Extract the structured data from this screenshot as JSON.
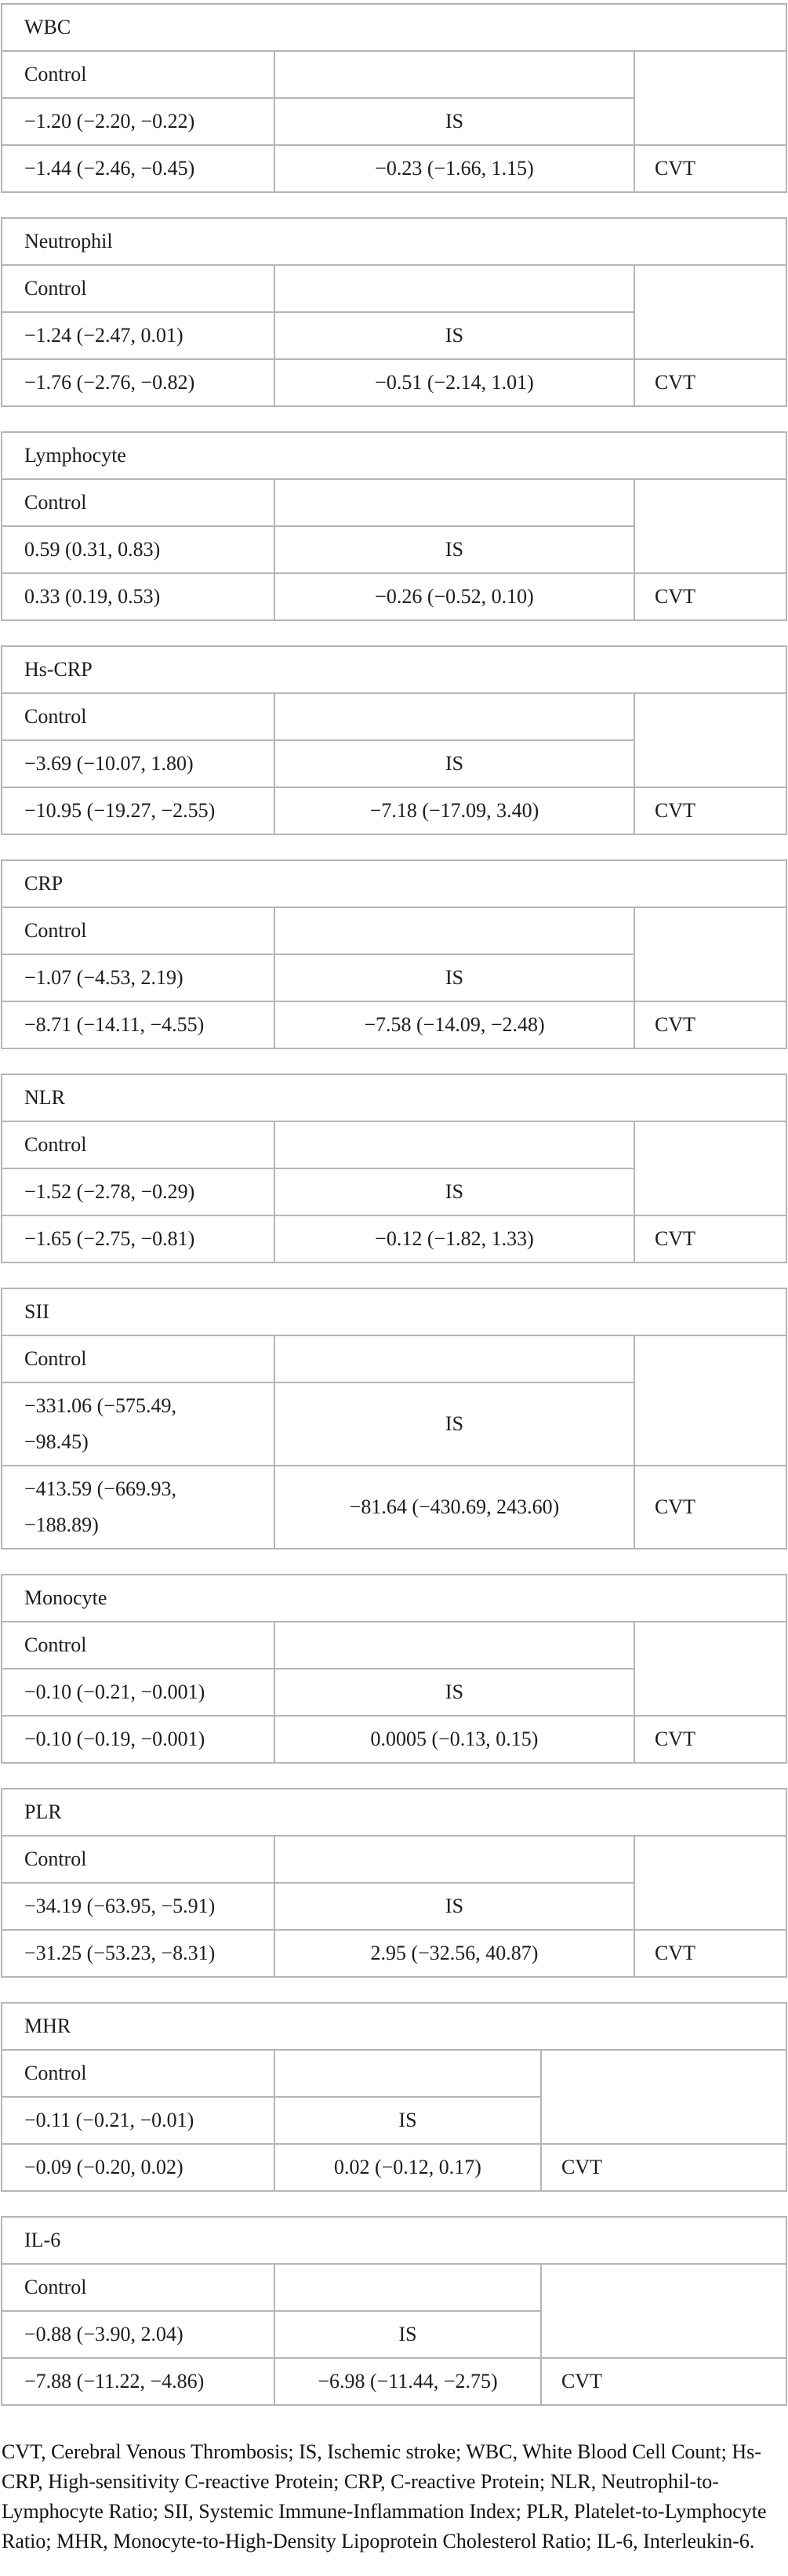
{
  "labels": {
    "control": "Control",
    "is": "IS",
    "cvt": "CVT"
  },
  "tables": [
    {
      "name": "WBC",
      "layout": "standard",
      "is_vs_control": "−1.20 (−2.20, −0.22)",
      "cvt_vs_control": "−1.44 (−2.46, −0.45)",
      "cvt_vs_is": "−0.23 (−1.66, 1.15)"
    },
    {
      "name": "Neutrophil",
      "layout": "standard",
      "is_vs_control": "−1.24 (−2.47, 0.01)",
      "cvt_vs_control": "−1.76 (−2.76, −0.82)",
      "cvt_vs_is": "−0.51 (−2.14, 1.01)"
    },
    {
      "name": "Lymphocyte",
      "layout": "standard",
      "is_vs_control": "0.59 (0.31, 0.83)",
      "cvt_vs_control": "0.33 (0.19, 0.53)",
      "cvt_vs_is": "−0.26 (−0.52, 0.10)"
    },
    {
      "name": "Hs-CRP",
      "layout": "standard",
      "is_vs_control": "−3.69 (−10.07, 1.80)",
      "cvt_vs_control": "−10.95 (−19.27, −2.55)",
      "cvt_vs_is": "−7.18 (−17.09, 3.40)"
    },
    {
      "name": "CRP",
      "layout": "standard",
      "is_vs_control": "−1.07 (−4.53, 2.19)",
      "cvt_vs_control": "−8.71 (−14.11, −4.55)",
      "cvt_vs_is": "−7.58 (−14.09, −2.48)"
    },
    {
      "name": "NLR",
      "layout": "standard",
      "is_vs_control": "−1.52 (−2.78, −0.29)",
      "cvt_vs_control": "−1.65 (−2.75, −0.81)",
      "cvt_vs_is": "−0.12 (−1.82, 1.33)"
    },
    {
      "name": "SII",
      "layout": "standard",
      "is_vs_control": "−331.06 (−575.49,\n−98.45)",
      "cvt_vs_control": "−413.59 (−669.93,\n−188.89)",
      "cvt_vs_is": "−81.64 (−430.69, 243.60)"
    },
    {
      "name": "Monocyte",
      "layout": "standard",
      "is_vs_control": "−0.10 (−0.21, −0.001)",
      "cvt_vs_control": "−0.10 (−0.19, −0.001)",
      "cvt_vs_is": "0.0005 (−0.13, 0.15)"
    },
    {
      "name": "PLR",
      "layout": "standard",
      "is_vs_control": "−34.19 (−63.95, −5.91)",
      "cvt_vs_control": "−31.25 (−53.23, −8.31)",
      "cvt_vs_is": "2.95 (−32.56, 40.87)"
    },
    {
      "name": "MHR",
      "layout": "narrow",
      "is_vs_control": "−0.11 (−0.21, −0.01)",
      "cvt_vs_control": "−0.09 (−0.20, 0.02)",
      "cvt_vs_is": "0.02 (−0.12, 0.17)"
    },
    {
      "name": "IL-6",
      "layout": "narrow",
      "is_vs_control": "−0.88 (−3.90, 2.04)",
      "cvt_vs_control": "−7.88 (−11.22, −4.86)",
      "cvt_vs_is": "−6.98 (−11.44, −2.75)"
    }
  ],
  "footnote": "CVT, Cerebral Venous Thrombosis; IS, Ischemic stroke; WBC, White Blood Cell Count; Hs-CRP, High-sensitivity C-reactive Protein; CRP, C-reactive Protein; NLR, Neutrophil-to-Lymphocyte Ratio; SII, Systemic Immune-Inflammation Index; PLR, Platelet-to-Lymphocyte Ratio; MHR, Monocyte-to-High-Density Lipoprotein Cholesterol Ratio; IL-6, Interleukin-6."
}
